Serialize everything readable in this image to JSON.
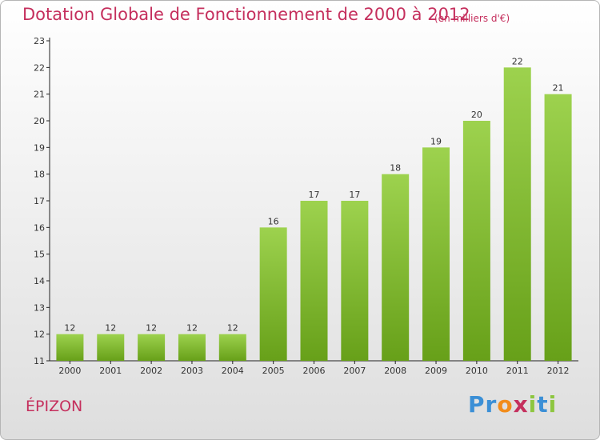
{
  "chart_data": {
    "type": "bar",
    "title": "Dotation Globale de Fonctionnement de 2000 à 2012",
    "subtitle": "(en milliers d'€)",
    "categories": [
      "2000",
      "2001",
      "2002",
      "2003",
      "2004",
      "2005",
      "2006",
      "2007",
      "2008",
      "2009",
      "2010",
      "2011",
      "2012"
    ],
    "values": [
      12,
      12,
      12,
      12,
      12,
      16,
      17,
      17,
      18,
      19,
      20,
      22,
      21
    ],
    "ylim": [
      11,
      23
    ],
    "yticks": [
      11,
      12,
      13,
      14,
      15,
      16,
      17,
      18,
      19,
      20,
      21,
      22,
      23
    ],
    "grid": false,
    "colors": {
      "bar_top": "#9dd24e",
      "bar_bottom": "#67a019",
      "text": "#c52f5d"
    }
  },
  "commune": "ÉPIZON",
  "logo": {
    "text": "Proxiti",
    "letters": [
      "P",
      "r",
      "o",
      "x",
      "i",
      "t",
      "i"
    ],
    "colors": [
      "#3b8fd6",
      "#3b8fd6",
      "#f28c1a",
      "#c52f5d",
      "#8dc63f",
      "#3b8fd6",
      "#8dc63f"
    ]
  }
}
